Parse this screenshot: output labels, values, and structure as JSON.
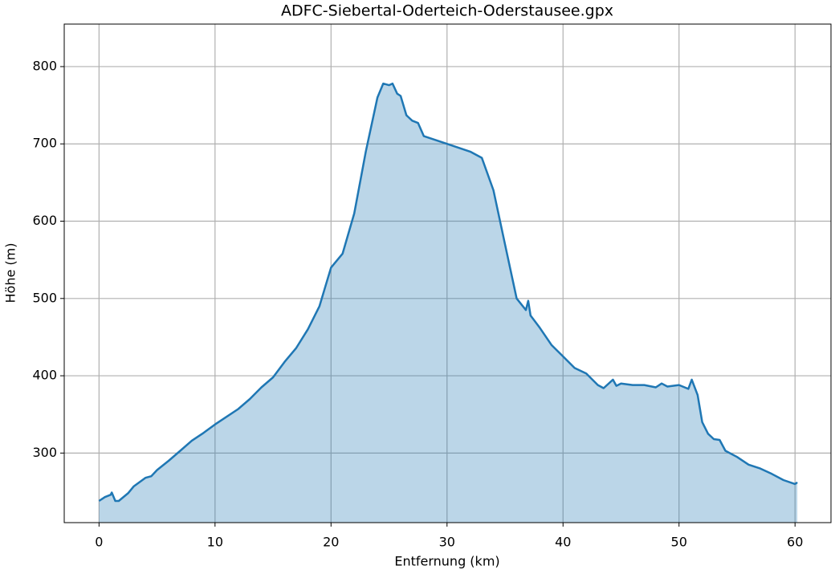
{
  "chart_data": {
    "type": "area",
    "title": "ADFC-Siebertal-Oderteich-Oderstausee.gpx",
    "x_label": "Entfernung (km)",
    "y_label": "Höhe (m)",
    "x": [
      0,
      0.5,
      1.0,
      1.1,
      1.4,
      1.7,
      2.5,
      3,
      4,
      4.5,
      5,
      6,
      7,
      8,
      9,
      10,
      11,
      12,
      13,
      14,
      15,
      16,
      17,
      18,
      19,
      19.5,
      20,
      21,
      22,
      23,
      24,
      24.5,
      25,
      25.3,
      25.7,
      26,
      26.5,
      27,
      27.5,
      28,
      30,
      32,
      33,
      34,
      35,
      36,
      36.8,
      37,
      37.2,
      38,
      39,
      40,
      41,
      42,
      43,
      43.5,
      44.3,
      44.6,
      45,
      46,
      47,
      48,
      48.5,
      49,
      50,
      50.8,
      51.1,
      51.6,
      52,
      52.5,
      53,
      53.5,
      54,
      55,
      56,
      57,
      58,
      59,
      60,
      60.2
    ],
    "values": [
      238,
      243,
      246,
      249,
      238,
      238,
      248,
      257,
      268,
      270,
      278,
      290,
      303,
      316,
      326,
      337,
      347,
      357,
      370,
      385,
      398,
      418,
      436,
      460,
      490,
      515,
      540,
      558,
      610,
      690,
      760,
      778,
      776,
      778,
      765,
      762,
      737,
      730,
      727,
      710,
      700,
      690,
      682,
      640,
      570,
      500,
      485,
      497,
      478,
      462,
      440,
      425,
      410,
      403,
      388,
      384,
      395,
      387,
      390,
      388,
      388,
      385,
      390,
      386,
      388,
      383,
      395,
      375,
      340,
      325,
      318,
      317,
      303,
      295,
      285,
      280,
      273,
      265,
      260,
      262
    ],
    "color": "#1f77b4",
    "xlim": [
      -3,
      63.1
    ],
    "ylim": [
      210,
      855
    ],
    "xticks": [
      0,
      10,
      20,
      30,
      40,
      50,
      60
    ],
    "yticks": [
      300,
      400,
      500,
      600,
      700,
      800
    ],
    "grid": true
  }
}
